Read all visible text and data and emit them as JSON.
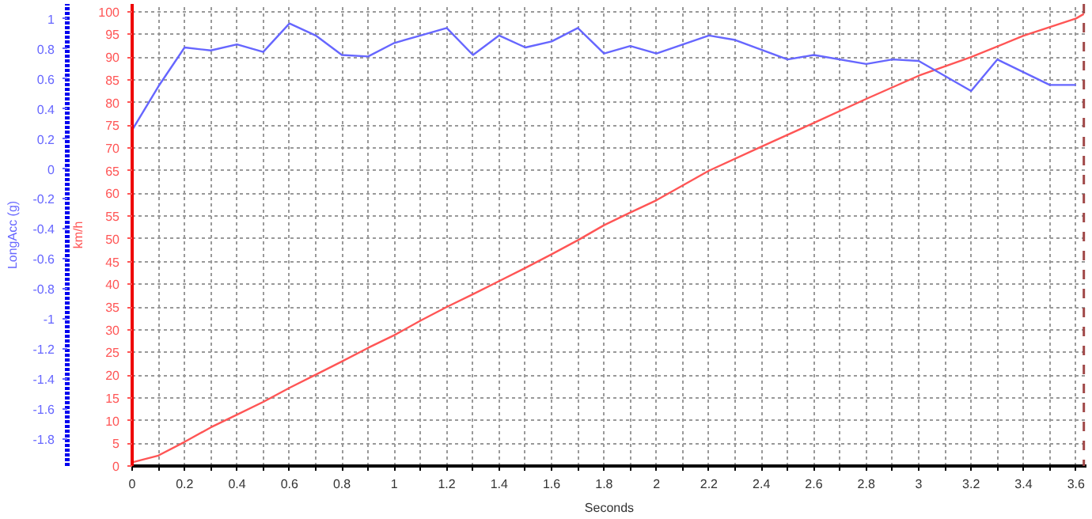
{
  "chart_data": {
    "type": "line",
    "xlabel": "Seconds",
    "ylabel": "km/h",
    "y2label": "LongAcc (g)",
    "xlim": [
      0,
      3.64
    ],
    "xticks": [
      0,
      {
        "value": 0.1,
        "label": null
      },
      0.2,
      {
        "value": 0.3,
        "label": null
      },
      0.4,
      {
        "value": 0.5,
        "label": null
      },
      0.6,
      {
        "value": 0.7,
        "label": null
      },
      0.8,
      {
        "value": 0.9,
        "label": null
      },
      1,
      {
        "value": 1.1,
        "label": null
      },
      1.2,
      {
        "value": 1.3,
        "label": null
      },
      1.4,
      {
        "value": 1.5,
        "label": null
      },
      1.6,
      {
        "value": 1.7,
        "label": null
      },
      1.8,
      {
        "value": 1.9,
        "label": null
      },
      2,
      {
        "value": 2.1,
        "label": null
      },
      2.2,
      {
        "value": 2.3,
        "label": null
      },
      2.4,
      {
        "value": 2.5,
        "label": null
      },
      2.6,
      {
        "value": 2.7,
        "label": null
      },
      2.8,
      {
        "value": 2.9,
        "label": null
      },
      3,
      {
        "value": 3.1,
        "label": null
      },
      3.2,
      {
        "value": 3.3,
        "label": null
      },
      3.4,
      {
        "value": 3.5,
        "label": null
      },
      3.6
    ],
    "ylim": [
      0,
      101.7
    ],
    "yticks": [
      0,
      5,
      10,
      15,
      20,
      25,
      30,
      35,
      40,
      45,
      50,
      55,
      60,
      65,
      70,
      75,
      80,
      85,
      90,
      95,
      100
    ],
    "y2lim": [
      -1.98,
      1.1
    ],
    "y2ticks": [
      1,
      0.8,
      0.6,
      0.4,
      0.2,
      0,
      -0.2,
      -0.4,
      -0.6,
      -0.8,
      -1,
      -1.2,
      -1.4,
      -1.6,
      -1.8
    ],
    "grid": true,
    "marker": "none",
    "line_style": "solid",
    "ref_lines": [
      {
        "axis": "x",
        "value": 3.63,
        "color": "#a04848",
        "line_style": "dashed"
      }
    ],
    "series": [
      {
        "color": "#ff5555",
        "x": [
          0,
          0.1,
          0.2,
          0.3,
          0.4,
          0.5,
          0.6,
          0.7,
          0.8,
          0.9,
          1.0,
          1.1,
          1.2,
          1.3,
          1.4,
          1.5,
          1.6,
          1.7,
          1.8,
          1.9,
          2.0,
          2.2,
          2.4,
          2.6,
          2.8,
          3.0,
          3.2,
          3.4,
          3.6,
          3.63
        ],
        "values": [
          0.8,
          2.3,
          5.3,
          8.5,
          11.3,
          14.1,
          17.2,
          20.1,
          23,
          26,
          28.8,
          32,
          35,
          37.8,
          40.7,
          43.6,
          46.6,
          49.7,
          53,
          55.8,
          58.5,
          65,
          70.3,
          75.5,
          80.8,
          85.9,
          90,
          94.7,
          98.5,
          99.5
        ]
      },
      {
        "color": "#6666ff",
        "axis": "y2",
        "x": [
          0,
          0.1,
          0.2,
          0.3,
          0.4,
          0.5,
          0.6,
          0.7,
          0.8,
          0.9,
          1.0,
          1.1,
          1.2,
          1.3,
          1.4,
          1.5,
          1.6,
          1.7,
          1.8,
          1.9,
          2.0,
          2.2,
          2.3,
          2.5,
          2.6,
          2.8,
          2.9,
          3.0,
          3.2,
          3.3,
          3.5,
          3.6
        ],
        "values": [
          0.26,
          0.55,
          0.81,
          0.79,
          0.83,
          0.78,
          0.97,
          0.89,
          0.76,
          0.75,
          0.84,
          0.89,
          0.94,
          0.76,
          0.89,
          0.81,
          0.85,
          0.94,
          0.77,
          0.82,
          0.77,
          0.89,
          0.86,
          0.73,
          0.76,
          0.7,
          0.73,
          0.72,
          0.52,
          0.73,
          0.56,
          0.56
        ]
      }
    ]
  }
}
